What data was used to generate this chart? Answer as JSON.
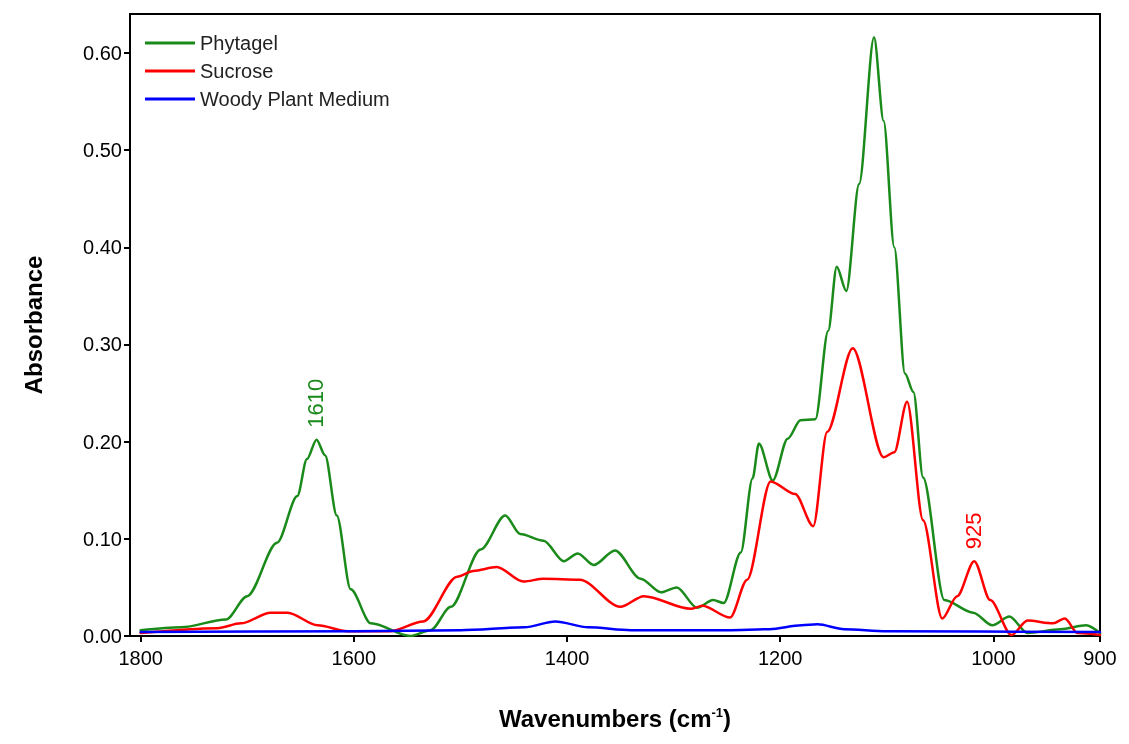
{
  "chart_data": {
    "type": "line",
    "xlabel": "Wavenumbers (cm$^{-1}$)",
    "ylabel": "Absorbance",
    "xlim": [
      1810,
      900
    ],
    "xticks": [
      900,
      1000,
      1200,
      1400,
      1600,
      1800
    ],
    "ylim": [
      0,
      0.64
    ],
    "yticks": [
      {
        "value": 0,
        "label": "0.00"
      },
      {
        "value": 0.1,
        "label": "0.10"
      },
      {
        "value": 0.2,
        "label": "0.20"
      },
      {
        "value": 0.3,
        "label": "0.30"
      },
      {
        "value": 0.4,
        "label": "0.40"
      },
      {
        "value": 0.5,
        "label": "0.50"
      },
      {
        "value": 0.6,
        "label": "0.60"
      }
    ],
    "grid": false,
    "legend": "top left",
    "marker": "none",
    "line_style": "solid",
    "series": [
      {
        "name": "Phytagel",
        "color": "#1a8a1a",
        "x": [
          1800,
          1762,
          1720,
          1700,
          1672,
          1653,
          1644,
          1635,
          1627,
          1616,
          1603,
          1584,
          1547,
          1528,
          1509,
          1481,
          1458,
          1444,
          1422,
          1403,
          1390,
          1375,
          1355,
          1331,
          1312,
          1297,
          1278,
          1263,
          1253,
          1237,
          1226,
          1220,
          1207,
          1193,
          1181,
          1167,
          1155,
          1147,
          1138,
          1126,
          1112,
          1103,
          1093,
          1083,
          1075,
          1066,
          1046,
          1019,
          1001,
          985,
          968,
          937,
          913,
          900
        ],
        "values": [
          0.006,
          0.009,
          0.017,
          0.041,
          0.096,
          0.144,
          0.182,
          0.202,
          0.186,
          0.124,
          0.048,
          0.013,
          0.0,
          0.006,
          0.03,
          0.089,
          0.124,
          0.105,
          0.098,
          0.077,
          0.085,
          0.073,
          0.088,
          0.059,
          0.045,
          0.05,
          0.029,
          0.037,
          0.034,
          0.086,
          0.162,
          0.198,
          0.16,
          0.203,
          0.222,
          0.223,
          0.314,
          0.38,
          0.355,
          0.465,
          0.616,
          0.53,
          0.4,
          0.27,
          0.251,
          0.163,
          0.037,
          0.024,
          0.011,
          0.02,
          0.003,
          0.007,
          0.011,
          0.003
        ]
      },
      {
        "name": "Sucrose",
        "color": "#ff0000",
        "x": [
          1800,
          1728,
          1706,
          1678,
          1662,
          1634,
          1606,
          1566,
          1535,
          1503,
          1488,
          1466,
          1441,
          1422,
          1388,
          1350,
          1328,
          1284,
          1273,
          1247,
          1231,
          1209,
          1186,
          1169,
          1156,
          1132,
          1103,
          1093,
          1081,
          1066,
          1048,
          1034,
          1018,
          1003,
          983,
          968,
          944,
          933,
          921,
          900
        ],
        "values": [
          0.003,
          0.008,
          0.013,
          0.024,
          0.024,
          0.011,
          0.005,
          0.005,
          0.015,
          0.061,
          0.067,
          0.071,
          0.056,
          0.059,
          0.058,
          0.03,
          0.041,
          0.028,
          0.031,
          0.019,
          0.058,
          0.159,
          0.146,
          0.113,
          0.21,
          0.296,
          0.184,
          0.189,
          0.241,
          0.119,
          0.018,
          0.041,
          0.077,
          0.037,
          0.001,
          0.016,
          0.013,
          0.018,
          0.003,
          0.001
        ]
      },
      {
        "name": "Woody Plant Medium",
        "color": "#0000ff",
        "x": [
          1800,
          1600,
          1500,
          1440,
          1411,
          1380,
          1340,
          1250,
          1210,
          1180,
          1165,
          1140,
          1100,
          900
        ],
        "values": [
          0.004,
          0.005,
          0.006,
          0.009,
          0.015,
          0.009,
          0.006,
          0.006,
          0.007,
          0.011,
          0.012,
          0.007,
          0.005,
          0.004
        ]
      }
    ],
    "annotations": [
      {
        "text": "1610",
        "x": 1635,
        "y": 0.202
      },
      {
        "text": "925",
        "x": 1018,
        "y": 0.077
      }
    ]
  }
}
